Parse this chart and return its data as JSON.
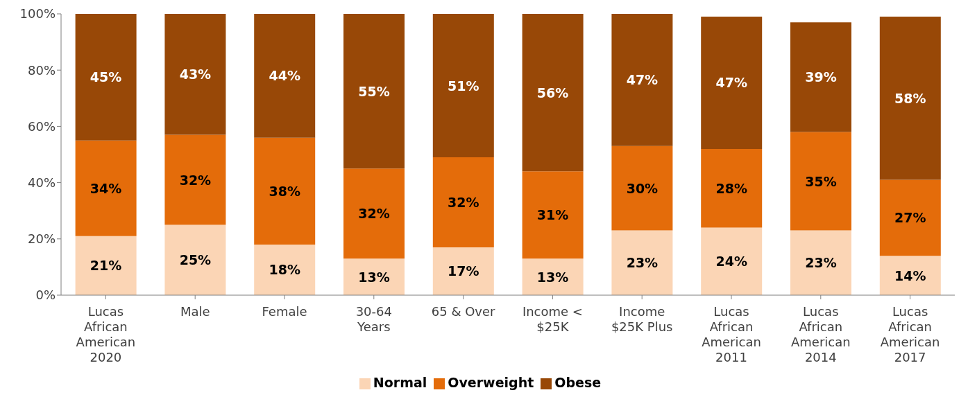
{
  "chart_data": {
    "type": "bar",
    "stacked": true,
    "categories": [
      "Lucas African American 2020",
      "Male",
      "Female",
      "30-64 Years",
      "65 & Over",
      "Income < $25K",
      "Income $25K Plus",
      "Lucas African American 2011",
      "Lucas African American 2014",
      "Lucas African American 2017"
    ],
    "series": [
      {
        "name": "Normal",
        "color": "#fbd5b5",
        "values": [
          21,
          25,
          18,
          13,
          17,
          13,
          23,
          24,
          23,
          14
        ],
        "value_labels": [
          "21%",
          "25%",
          "18%",
          "13%",
          "17%",
          "13%",
          "23%",
          "24%",
          "23%",
          "14%"
        ]
      },
      {
        "name": "Overweight",
        "color": "#e46c0a",
        "values": [
          34,
          32,
          38,
          32,
          32,
          31,
          30,
          28,
          35,
          27
        ],
        "value_labels": [
          "34%",
          "32%",
          "38%",
          "32%",
          "32%",
          "31%",
          "30%",
          "28%",
          "35%",
          "27%"
        ]
      },
      {
        "name": "Obese",
        "color": "#984807",
        "values": [
          45,
          43,
          44,
          55,
          51,
          56,
          47,
          47,
          39,
          58
        ],
        "value_labels": [
          "45%",
          "43%",
          "44%",
          "55%",
          "51%",
          "56%",
          "47%",
          "47%",
          "39%",
          "58%"
        ]
      }
    ],
    "ylim": [
      0,
      100
    ],
    "yticks": [
      {
        "value": 0,
        "label": "0%"
      },
      {
        "value": 20,
        "label": "20%"
      },
      {
        "value": 40,
        "label": "40%"
      },
      {
        "value": 60,
        "label": "60%"
      },
      {
        "value": 80,
        "label": "80%"
      },
      {
        "value": 100,
        "label": "100%"
      }
    ],
    "grid": false,
    "legend": "bottom"
  }
}
